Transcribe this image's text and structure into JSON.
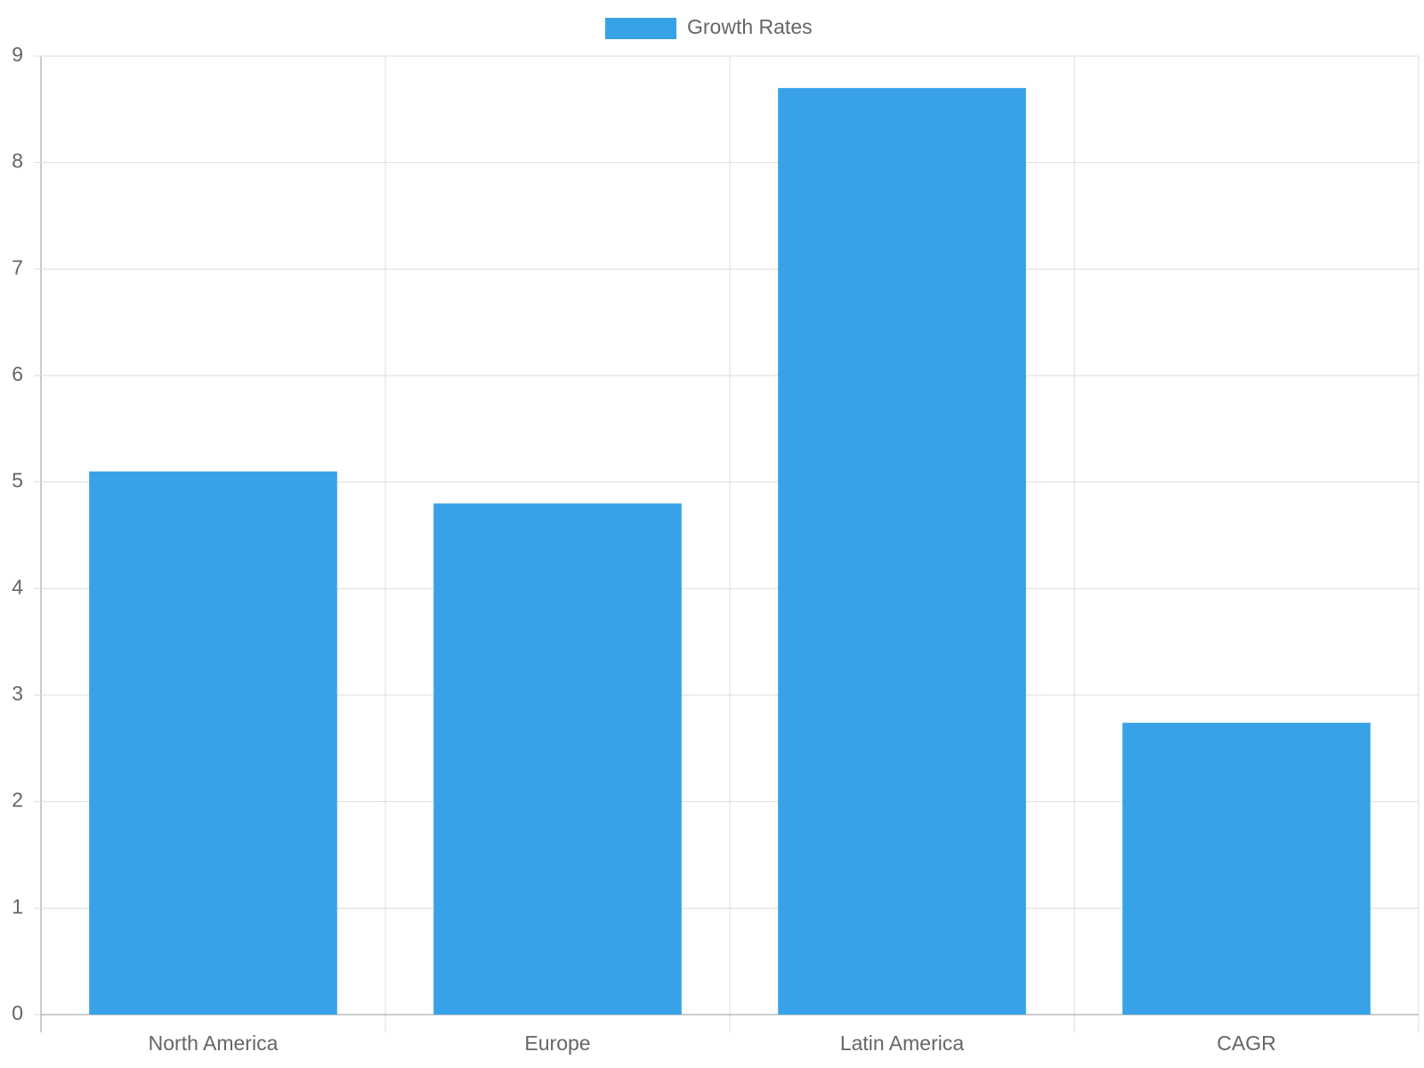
{
  "chart_data": {
    "type": "bar",
    "categories": [
      "North America",
      "Europe",
      "Latin America",
      "CAGR"
    ],
    "series": [
      {
        "name": "Growth Rates",
        "color": "#38a2e8",
        "values": [
          5.1,
          4.8,
          8.7,
          2.74
        ]
      }
    ],
    "ylim": [
      0,
      9
    ],
    "yticks": [
      0,
      1,
      2,
      3,
      4,
      5,
      6,
      7,
      8,
      9
    ],
    "grid": true,
    "legend": "top"
  }
}
